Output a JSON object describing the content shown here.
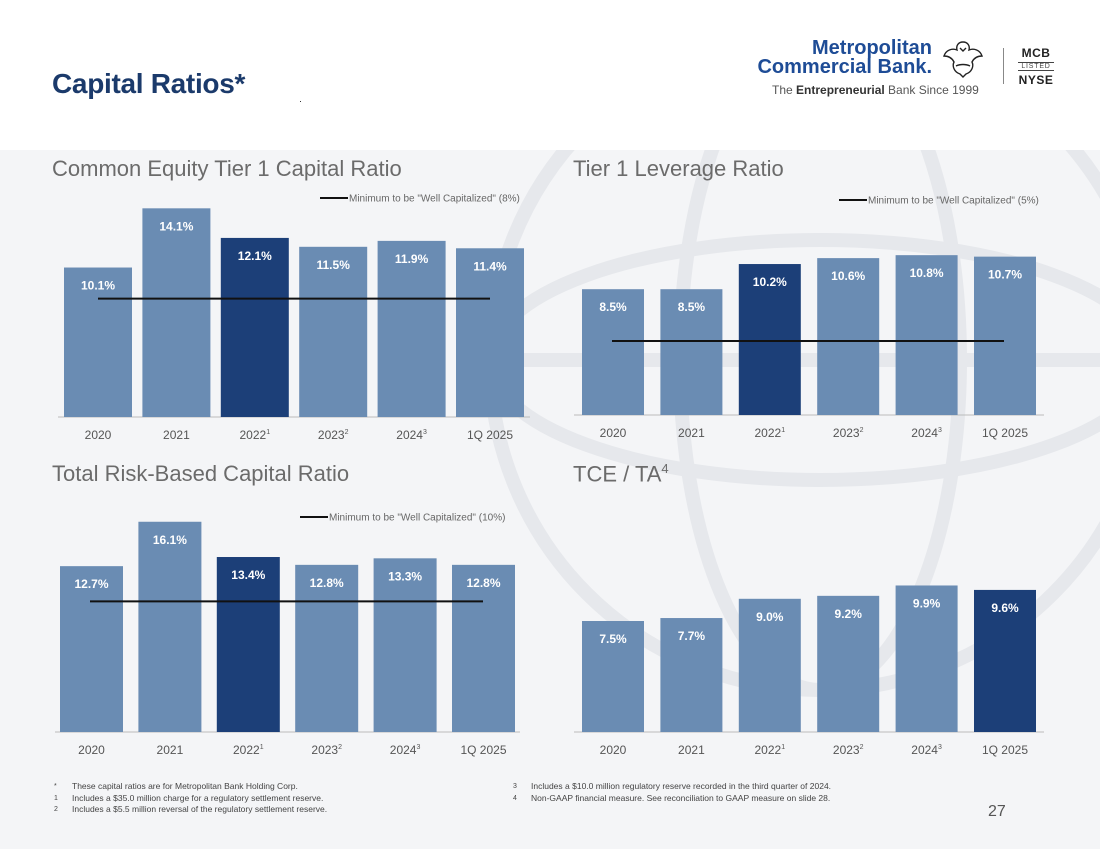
{
  "page": {
    "title": "Capital Ratios*",
    "page_number": "27"
  },
  "logo": {
    "line1": "Metropolitan",
    "line2": "Commercial Bank.",
    "tagline_pre": "The ",
    "tagline_bold": "Entrepreneurial",
    "tagline_post": " Bank Since 1999",
    "exchange_ticker": "MCB",
    "exchange_listed": "LISTED",
    "exchange_name": "NYSE"
  },
  "colors": {
    "bar_default": "#6a8cb3",
    "bar_highlight": "#1c3f78",
    "threshold_line": "#111111",
    "title_text": "#1b3a6b"
  },
  "chart_data": [
    {
      "type": "bar",
      "title": "Common Equity Tier 1 Capital Ratio",
      "categories": [
        {
          "label": "2020",
          "sup": ""
        },
        {
          "label": "2021",
          "sup": ""
        },
        {
          "label": "2022",
          "sup": "1"
        },
        {
          "label": "2023",
          "sup": "2"
        },
        {
          "label": "2024",
          "sup": "3"
        },
        {
          "label": "1Q 2025",
          "sup": ""
        }
      ],
      "values": [
        10.1,
        14.1,
        12.1,
        11.5,
        11.9,
        11.4
      ],
      "value_labels": [
        "10.1%",
        "14.1%",
        "12.1%",
        "11.5%",
        "11.9%",
        "11.4%"
      ],
      "highlight_index": 2,
      "threshold": {
        "value": 8,
        "label": "Minimum to be \"Well Capitalized\" (8%)"
      },
      "ylim": [
        0,
        15
      ]
    },
    {
      "type": "bar",
      "title": "Tier 1 Leverage Ratio",
      "categories": [
        {
          "label": "2020",
          "sup": ""
        },
        {
          "label": "2021",
          "sup": ""
        },
        {
          "label": "2022",
          "sup": "1"
        },
        {
          "label": "2023",
          "sup": "2"
        },
        {
          "label": "2024",
          "sup": "3"
        },
        {
          "label": "1Q 2025",
          "sup": ""
        }
      ],
      "values": [
        8.5,
        8.5,
        10.2,
        10.6,
        10.8,
        10.7
      ],
      "value_labels": [
        "8.5%",
        "8.5%",
        "10.2%",
        "10.6%",
        "10.8%",
        "10.7%"
      ],
      "highlight_index": 2,
      "threshold": {
        "value": 5,
        "label": "Minimum to be \"Well Capitalized\" (5%)"
      },
      "ylim": [
        0,
        15
      ]
    },
    {
      "type": "bar",
      "title": "Total Risk-Based Capital Ratio",
      "categories": [
        {
          "label": "2020",
          "sup": ""
        },
        {
          "label": "2021",
          "sup": ""
        },
        {
          "label": "2022",
          "sup": "1"
        },
        {
          "label": "2023",
          "sup": "2"
        },
        {
          "label": "2024",
          "sup": "3"
        },
        {
          "label": "1Q 2025",
          "sup": ""
        }
      ],
      "values": [
        12.7,
        16.1,
        13.4,
        12.8,
        13.3,
        12.8
      ],
      "value_labels": [
        "12.7%",
        "16.1%",
        "13.4%",
        "12.8%",
        "13.3%",
        "12.8%"
      ],
      "highlight_index": 2,
      "threshold": {
        "value": 10,
        "label": "Minimum to be \"Well Capitalized\" (10%)"
      },
      "ylim": [
        0,
        17
      ]
    },
    {
      "type": "bar",
      "title": "TCE / TA",
      "title_sup": "4",
      "categories": [
        {
          "label": "2020",
          "sup": ""
        },
        {
          "label": "2021",
          "sup": ""
        },
        {
          "label": "2022",
          "sup": "1"
        },
        {
          "label": "2023",
          "sup": "2"
        },
        {
          "label": "2024",
          "sup": "3"
        },
        {
          "label": "1Q 2025",
          "sup": ""
        }
      ],
      "values": [
        7.5,
        7.7,
        9.0,
        9.2,
        9.9,
        9.6
      ],
      "value_labels": [
        "7.5%",
        "7.7%",
        "9.0%",
        "9.2%",
        "9.9%",
        "9.6%"
      ],
      "highlight_index": 5,
      "threshold": null,
      "ylim": [
        0,
        15
      ]
    }
  ],
  "footnotes": {
    "left": [
      {
        "mark": "*",
        "text": "These capital ratios are for Metropolitan Bank Holding Corp."
      },
      {
        "mark": "1",
        "text": "Includes a $35.0 million charge for a regulatory settlement reserve."
      },
      {
        "mark": "2",
        "text": "Includes a $5.5 million reversal of the regulatory settlement reserve."
      }
    ],
    "right": [
      {
        "mark": "3",
        "text": "Includes a $10.0 million regulatory reserve recorded in the third quarter of 2024."
      },
      {
        "mark": "4",
        "text": "Non-GAAP financial measure. See reconciliation to GAAP measure on slide 28."
      }
    ]
  }
}
